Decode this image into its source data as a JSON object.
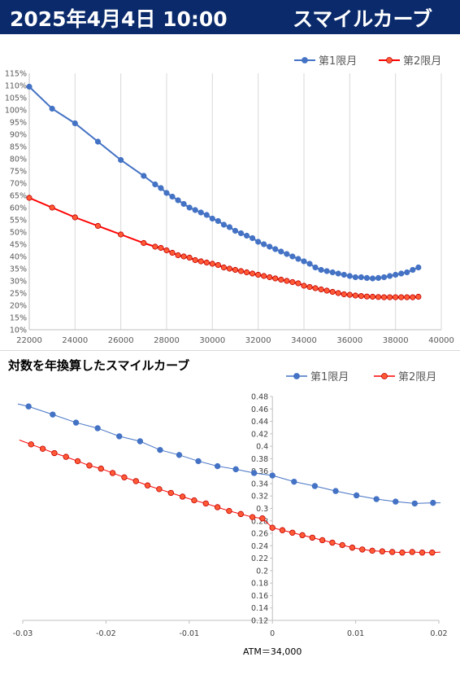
{
  "header": {
    "date_time": "2025年4月4日 10:00",
    "title": "スマイルカーブ"
  },
  "colors": {
    "banner_bg": "#0a2a6b",
    "series1": "#4472c4",
    "series2": "#ff0000",
    "series2_fill": "#ff5a36"
  },
  "chart_data": [
    {
      "type": "line",
      "title": "",
      "legend_position": "top-right",
      "grid": "vertical",
      "xlim": [
        22000,
        40000
      ],
      "ylim": [
        10,
        115
      ],
      "x_ticks": [
        "22000",
        "24000",
        "26000",
        "28000",
        "30000",
        "32000",
        "34000",
        "36000",
        "38000",
        "40000"
      ],
      "y_ticks": [
        "10%",
        "15%",
        "20%",
        "25%",
        "30%",
        "35%",
        "40%",
        "45%",
        "50%",
        "55%",
        "60%",
        "65%",
        "70%",
        "75%",
        "80%",
        "85%",
        "90%",
        "95%",
        "100%",
        "105%",
        "110%",
        "115%"
      ],
      "series": [
        {
          "name": "第1限月",
          "x": [
            22000,
            23000,
            24000,
            25000,
            26000,
            27000,
            27500,
            27750,
            28000,
            28250,
            28500,
            28750,
            29000,
            29250,
            29500,
            29750,
            30000,
            30250,
            30500,
            30750,
            31000,
            31250,
            31500,
            31750,
            32000,
            32250,
            32500,
            32750,
            33000,
            33250,
            33500,
            33750,
            34000,
            34250,
            34500,
            34750,
            35000,
            35250,
            35500,
            35750,
            36000,
            36250,
            36500,
            36750,
            37000,
            37250,
            37500,
            37750,
            38000,
            38250,
            38500,
            38750,
            39000
          ],
          "y": [
            109.5,
            100.5,
            94.5,
            87,
            79.5,
            73,
            69.5,
            68,
            66,
            64.5,
            63,
            61.5,
            60,
            59,
            58,
            57,
            55.5,
            54.5,
            53,
            52,
            50.5,
            49.5,
            48.5,
            47.5,
            46,
            45,
            44,
            43,
            42,
            41,
            40,
            39,
            38,
            37,
            35.5,
            34.5,
            34,
            33.5,
            33,
            32.5,
            32,
            31.5,
            31.5,
            31.2,
            31,
            31.2,
            31.5,
            32,
            32.5,
            33,
            33.5,
            34.5,
            35.5
          ]
        },
        {
          "name": "第2限月",
          "x": [
            22000,
            23000,
            24000,
            25000,
            26000,
            27000,
            27500,
            27750,
            28000,
            28250,
            28500,
            28750,
            29000,
            29250,
            29500,
            29750,
            30000,
            30250,
            30500,
            30750,
            31000,
            31250,
            31500,
            31750,
            32000,
            32250,
            32500,
            32750,
            33000,
            33250,
            33500,
            33750,
            34000,
            34250,
            34500,
            34750,
            35000,
            35250,
            35500,
            35750,
            36000,
            36250,
            36500,
            36750,
            37000,
            37250,
            37500,
            37750,
            38000,
            38250,
            38500,
            38750,
            39000
          ],
          "y": [
            64,
            60,
            56,
            52.5,
            49,
            45.5,
            44,
            43.5,
            42.5,
            41.5,
            40.5,
            40,
            39.5,
            38.5,
            38,
            37.5,
            37,
            36.5,
            35.5,
            35,
            34.5,
            34,
            33.5,
            33,
            32.5,
            32,
            31.5,
            31,
            30.5,
            30,
            29.5,
            29,
            28,
            27.5,
            27,
            26.5,
            26,
            25.5,
            25,
            24.5,
            24.3,
            24,
            23.8,
            23.6,
            23.5,
            23.4,
            23.3,
            23.3,
            23.3,
            23.3,
            23.3,
            23.3,
            23.5
          ]
        }
      ]
    },
    {
      "type": "line",
      "title": "対数を年換算したスマイルカーブ",
      "xlabel": "ATM＝34,000",
      "legend_position": "top-right",
      "grid": "none",
      "xlim": [
        -0.03,
        0.02
      ],
      "ylim": [
        0.12,
        0.48
      ],
      "x_ticks": [
        "-0.03",
        "-0.02",
        "-0.01",
        "0",
        "0.01",
        "0.02"
      ],
      "y_ticks": [
        "0.12",
        "0.14",
        "0.16",
        "0.18",
        "0.2",
        "0.22",
        "0.24",
        "0.26",
        "0.28",
        "0.3",
        "0.32",
        "0.34",
        "0.36",
        "0.38",
        "0.4",
        "0.42",
        "0.44",
        "0.46",
        "0.48"
      ],
      "series": [
        {
          "name": "第1限月",
          "x": [
            -0.0306,
            -0.0293,
            -0.0264,
            -0.0236,
            -0.021,
            -0.0184,
            -0.0159,
            -0.0135,
            -0.0112,
            -0.0089,
            -0.0066,
            -0.0044,
            -0.0022,
            0,
            0.0026,
            0.0051,
            0.0076,
            0.0101,
            0.0125,
            0.0148,
            0.0171,
            0.0193,
            0.0205
          ],
          "y": [
            0.468,
            0.464,
            0.451,
            0.438,
            0.429,
            0.416,
            0.408,
            0.394,
            0.386,
            0.376,
            0.368,
            0.363,
            0.357,
            0.353,
            0.343,
            0.336,
            0.328,
            0.321,
            0.315,
            0.311,
            0.308,
            0.309,
            0.309
          ]
        },
        {
          "name": "第2限月",
          "x": [
            -0.0304,
            -0.029,
            -0.0276,
            -0.0262,
            -0.0248,
            -0.0234,
            -0.022,
            -0.0206,
            -0.0192,
            -0.0178,
            -0.0164,
            -0.015,
            -0.0136,
            -0.0122,
            -0.0108,
            -0.0094,
            -0.008,
            -0.0066,
            -0.0052,
            -0.0038,
            -0.0024,
            -0.0012,
            0,
            0.0012,
            0.0024,
            0.0036,
            0.0048,
            0.006,
            0.0072,
            0.0084,
            0.0096,
            0.0108,
            0.012,
            0.0132,
            0.0144,
            0.0156,
            0.0168,
            0.018,
            0.0192,
            0.0204
          ],
          "y": [
            0.41,
            0.403,
            0.396,
            0.389,
            0.383,
            0.376,
            0.369,
            0.364,
            0.357,
            0.35,
            0.344,
            0.337,
            0.331,
            0.325,
            0.319,
            0.313,
            0.308,
            0.302,
            0.296,
            0.291,
            0.286,
            0.284,
            0.269,
            0.265,
            0.261,
            0.257,
            0.253,
            0.249,
            0.245,
            0.241,
            0.237,
            0.234,
            0.232,
            0.231,
            0.23,
            0.229,
            0.23,
            0.229,
            0.229,
            0.23
          ]
        }
      ]
    }
  ]
}
